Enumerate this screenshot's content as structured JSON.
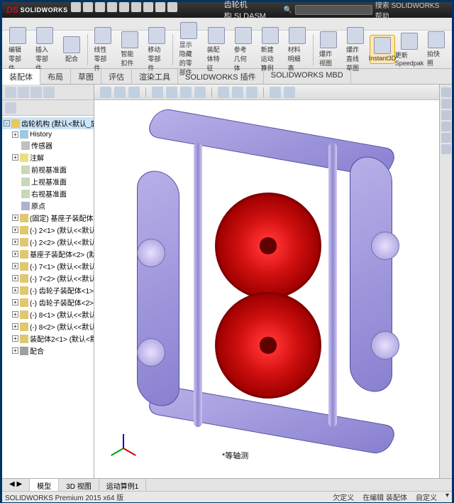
{
  "app": {
    "vendor_prefix": "DS",
    "vendor": "SOLIDWORKS",
    "filename": "齿轮机构.SLDASM",
    "search_placeholder": "搜索 SOLIDWORKS 帮助"
  },
  "ribbon": [
    {
      "label": "编辑零部件"
    },
    {
      "label": "插入零部件"
    },
    {
      "label": "配合"
    },
    {
      "label": "线性零部件"
    },
    {
      "label": "智能扣件"
    },
    {
      "label": "移动零部件"
    },
    {
      "label": "显示隐藏的零部件"
    },
    {
      "label": "装配体特征"
    },
    {
      "label": "参考几何体"
    },
    {
      "label": "新建运动算例"
    },
    {
      "label": "材料明细表"
    },
    {
      "label": "爆炸视图"
    },
    {
      "label": "爆炸直线草图"
    },
    {
      "label": "Instant3D",
      "active": true
    },
    {
      "label": "更新Speedpak"
    },
    {
      "label": "拍快照"
    }
  ],
  "tabs": [
    {
      "label": "装配体",
      "active": true
    },
    {
      "label": "布局"
    },
    {
      "label": "草图"
    },
    {
      "label": "评估"
    },
    {
      "label": "渲染工具"
    },
    {
      "label": "SOLIDWORKS 插件"
    },
    {
      "label": "SOLIDWORKS MBD"
    }
  ],
  "tree": {
    "root": "齿轮机构 (默认<默认_显示状态",
    "nodes": [
      {
        "d": 1,
        "ic": "hist",
        "t": "History",
        "exp": "+"
      },
      {
        "d": 1,
        "ic": "sens",
        "t": "传感器"
      },
      {
        "d": 1,
        "ic": "ann",
        "t": "注解",
        "exp": "+"
      },
      {
        "d": 1,
        "ic": "plane",
        "t": "前视基准面"
      },
      {
        "d": 1,
        "ic": "plane",
        "t": "上视基准面"
      },
      {
        "d": 1,
        "ic": "plane",
        "t": "右视基准面"
      },
      {
        "d": 1,
        "ic": "org",
        "t": "原点"
      },
      {
        "d": 1,
        "ic": "part",
        "t": "(固定) 基座子装配体<1> (默",
        "exp": "+"
      },
      {
        "d": 1,
        "ic": "part",
        "t": "(-) 2<1> (默认<<默认>_显",
        "exp": "+"
      },
      {
        "d": 1,
        "ic": "part",
        "t": "(-) 2<2> (默认<<默认>_显",
        "exp": "+"
      },
      {
        "d": 1,
        "ic": "part",
        "t": "基座子装配体<2> (默认<默",
        "exp": "+"
      },
      {
        "d": 1,
        "ic": "part",
        "t": "(-) 7<1> (默认<<默认>_显",
        "exp": "+"
      },
      {
        "d": 1,
        "ic": "part",
        "t": "(-) 7<2> (默认<<默认>_显",
        "exp": "+"
      },
      {
        "d": 1,
        "ic": "part",
        "t": "(-) 齿轮子装配体<1> (默认",
        "exp": "+"
      },
      {
        "d": 1,
        "ic": "part",
        "t": "(-) 齿轮子装配体<2> (默认",
        "exp": "+"
      },
      {
        "d": 1,
        "ic": "part",
        "t": "(-) 8<1> (默认<<默认>_显",
        "exp": "+"
      },
      {
        "d": 1,
        "ic": "part",
        "t": "(-) 8<2> (默认<<默认>_显",
        "exp": "+"
      },
      {
        "d": 1,
        "ic": "part",
        "t": "装配体2<1> (默认<默认_显",
        "exp": "+"
      },
      {
        "d": 1,
        "ic": "mate",
        "t": "配合",
        "exp": "+"
      }
    ]
  },
  "bottom_tabs": [
    {
      "label": "模型",
      "active": true
    },
    {
      "label": "3D 视图"
    },
    {
      "label": "运动算例1"
    }
  ],
  "view_label": "*等轴测",
  "status": {
    "version": "SOLIDWORKS Premium 2015 x64 版",
    "defn": "欠定义",
    "mode": "在编辑 装配体",
    "custom": "自定义"
  },
  "colors": {
    "frame": "#9890d8",
    "gear": "#d01010",
    "bg": "#ffffff"
  }
}
